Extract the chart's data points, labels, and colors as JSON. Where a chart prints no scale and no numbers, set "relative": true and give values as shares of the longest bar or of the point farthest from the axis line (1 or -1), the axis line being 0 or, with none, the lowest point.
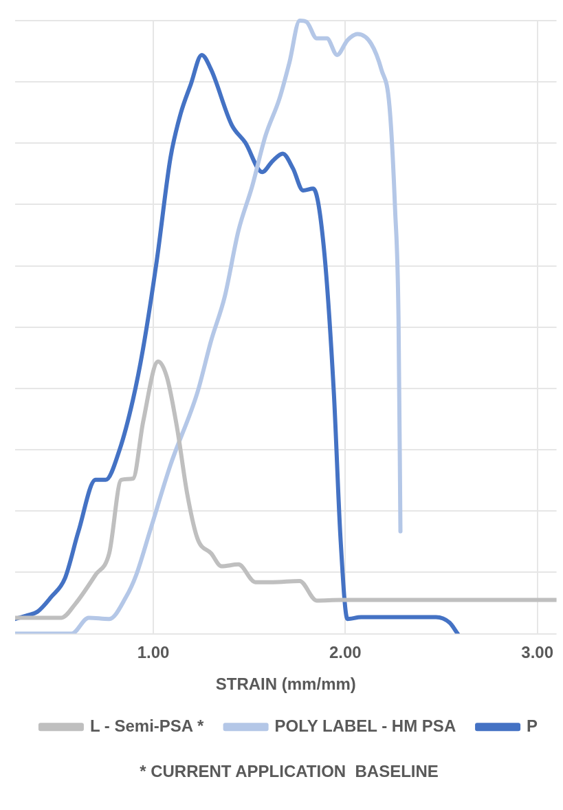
{
  "chart_data": {
    "type": "line",
    "xlabel": "STRAIN (mm/mm)",
    "relative": true,
    "xlim": [
      0.28,
      3.1
    ],
    "xticks": [
      {
        "value": 1,
        "label": "1.00"
      },
      {
        "value": 2,
        "label": "2.00"
      },
      {
        "value": 3,
        "label": "3.00"
      }
    ],
    "grid": true,
    "legend": "bottom",
    "marker": "none",
    "line_style": "solid",
    "annotations": [
      "* CURRENT APPLICATION  BASELINE"
    ],
    "series": [
      {
        "name": "L - Semi-PSA *",
        "color": "#bfbfbf",
        "x": [
          0.28,
          0.415,
          0.521,
          0.592,
          0.699,
          0.77,
          0.833,
          0.894,
          0.947,
          1.025,
          1.071,
          1.124,
          1.177,
          1.23,
          1.301,
          1.355,
          1.443,
          1.532,
          1.621,
          1.762,
          1.851,
          1.975,
          3.1
        ],
        "values": [
          0.026,
          0.026,
          0.026,
          0.048,
          0.096,
          0.131,
          0.251,
          0.253,
          0.346,
          0.444,
          0.418,
          0.335,
          0.227,
          0.155,
          0.131,
          0.11,
          0.113,
          0.084,
          0.084,
          0.086,
          0.054,
          0.055,
          0.055
        ]
      },
      {
        "name": "POLY LABEL - HM PSA",
        "color": "#b4c7e7",
        "x": [
          0.28,
          0.574,
          0.663,
          0.77,
          0.858,
          0.911,
          0.982,
          1.089,
          1.23,
          1.301,
          1.372,
          1.443,
          1.514,
          1.585,
          1.656,
          1.709,
          1.762,
          1.798,
          1.851,
          1.904,
          1.957,
          2.011,
          2.064,
          2.135,
          2.188,
          2.23,
          2.259,
          2.277,
          2.287
        ],
        "values": [
          0,
          0,
          0.026,
          0.024,
          0.06,
          0.096,
          0.167,
          0.275,
          0.394,
          0.478,
          0.55,
          0.657,
          0.729,
          0.813,
          0.872,
          0.932,
          1,
          0.998,
          0.971,
          0.971,
          0.944,
          0.968,
          0.978,
          0.962,
          0.92,
          0.86,
          0.693,
          0.514,
          0.167
        ]
      },
      {
        "name": "P",
        "color": "#4472c4",
        "x": [
          0.28,
          0.344,
          0.397,
          0.468,
          0.539,
          0.61,
          0.699,
          0.752,
          0.823,
          0.894,
          0.947,
          1.018,
          1.089,
          1.142,
          1.195,
          1.252,
          1.301,
          1.408,
          1.479,
          1.567,
          1.621,
          1.674,
          1.727,
          1.78,
          1.833,
          1.887,
          1.94,
          1.975,
          2.011,
          2.082,
          2.472,
          2.543,
          2.585
        ],
        "values": [
          0.024,
          0.03,
          0.036,
          0.06,
          0.09,
          0.167,
          0.251,
          0.251,
          0.299,
          0.382,
          0.466,
          0.609,
          0.776,
          0.848,
          0.896,
          0.944,
          0.92,
          0.83,
          0.801,
          0.753,
          0.771,
          0.783,
          0.759,
          0.723,
          0.726,
          0.633,
          0.394,
          0.155,
          0.024,
          0.027,
          0.027,
          0.018,
          0
        ]
      }
    ]
  }
}
